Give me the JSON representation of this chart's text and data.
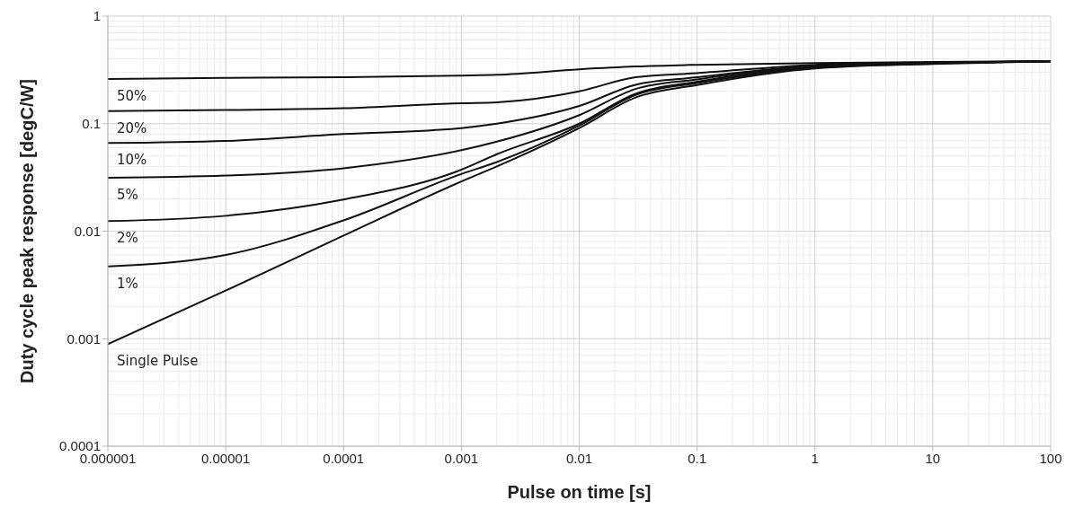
{
  "chart_data": {
    "type": "line",
    "xlabel": "Pulse on time [s]",
    "ylabel": "Duty cycle peak response [degC/W]",
    "log": "xy",
    "grid": true,
    "legend": false,
    "marker": "none",
    "line_style": "solid",
    "x": [
      1e-06,
      1e-05,
      0.0001,
      0.001,
      0.002,
      0.01,
      0.03,
      0.1,
      1,
      10,
      100
    ],
    "xlim": [
      1e-06,
      100
    ],
    "xticks": [
      {
        "value": 1e-06,
        "label": "0.000001"
      },
      {
        "value": 1e-05,
        "label": "0.00001"
      },
      0.0001,
      0.001,
      0.01,
      0.1,
      1,
      10,
      100
    ],
    "ylim": [
      0.0001,
      1
    ],
    "yticks": [
      0.0001,
      0.001,
      0.01,
      0.1,
      1
    ],
    "series": [
      {
        "name": "50%",
        "color": "#111111",
        "values": [
          0.26,
          0.266,
          0.271,
          0.28,
          0.285,
          0.32,
          0.34,
          0.353,
          0.367,
          0.375,
          0.38
        ]
      },
      {
        "name": "20%",
        "color": "#111111",
        "values": [
          0.131,
          0.134,
          0.139,
          0.155,
          0.158,
          0.2,
          0.27,
          0.295,
          0.353,
          0.372,
          0.38
        ]
      },
      {
        "name": "10%",
        "color": "#111111",
        "values": [
          0.066,
          0.069,
          0.08,
          0.091,
          0.1,
          0.146,
          0.23,
          0.27,
          0.345,
          0.37,
          0.38
        ]
      },
      {
        "name": "5%",
        "color": "#111111",
        "values": [
          0.0314,
          0.0329,
          0.0385,
          0.0566,
          0.068,
          0.12,
          0.21,
          0.258,
          0.34,
          0.368,
          0.38
        ]
      },
      {
        "name": "2%",
        "color": "#111111",
        "values": [
          0.0124,
          0.0139,
          0.0197,
          0.0373,
          0.052,
          0.1,
          0.19,
          0.246,
          0.335,
          0.366,
          0.38
        ]
      },
      {
        "name": "1%",
        "color": "#111111",
        "values": [
          0.0047,
          0.006,
          0.0126,
          0.034,
          0.044,
          0.096,
          0.185,
          0.239,
          0.33,
          0.363,
          0.38
        ]
      },
      {
        "name": "Single Pulse",
        "color": "#111111",
        "values": [
          0.00089,
          0.0028,
          0.0091,
          0.029,
          0.04,
          0.091,
          0.175,
          0.229,
          0.327,
          0.36,
          0.38
        ]
      }
    ]
  }
}
